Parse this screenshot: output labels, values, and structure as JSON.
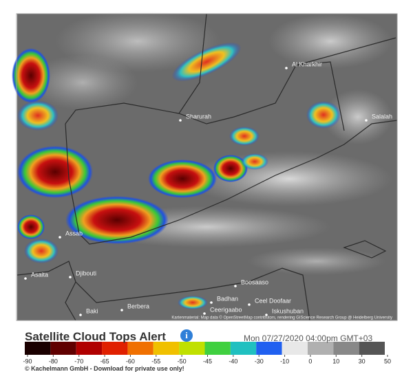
{
  "header": {
    "title": "Satellite Cloud Tops Alert",
    "timestamp": "Mon 07/27/2020 04:00pm GMT+03"
  },
  "map": {
    "places": [
      "Al Kharkhir",
      "Sharurah",
      "Salalah",
      "Assab",
      "Djibouti",
      "Asaita",
      "Berbera",
      "Boosaaso",
      "Badhan",
      "Ceel Doofaar",
      "Ceerigaabo",
      "Iskushuban",
      "Baki"
    ],
    "attribution": "Kartenmaterial: Map data © OpenStreetMap contributors, rendering GIScience Research Group @ Heidelberg University"
  },
  "colorbar": {
    "ticks": [
      -90,
      -80,
      -70,
      -65,
      -60,
      -55,
      -50,
      -45,
      -40,
      -30,
      -10,
      0,
      10,
      30,
      50
    ]
  },
  "footer": "© Kachelmann GmbH - Download for private use only!"
}
